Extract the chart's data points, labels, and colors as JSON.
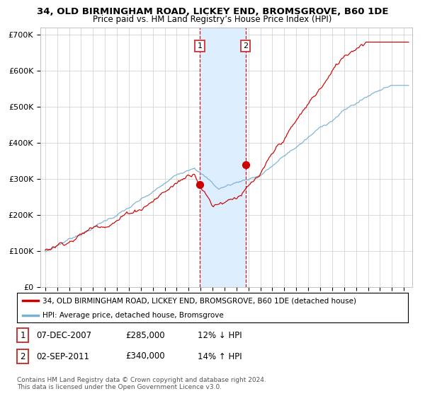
{
  "title": "34, OLD BIRMINGHAM ROAD, LICKEY END, BROMSGROVE, B60 1DE",
  "subtitle": "Price paid vs. HM Land Registry’s House Price Index (HPI)",
  "ylabel_ticks": [
    "£0",
    "£100K",
    "£200K",
    "£300K",
    "£400K",
    "£500K",
    "£600K",
    "£700K"
  ],
  "ytick_values": [
    0,
    100000,
    200000,
    300000,
    400000,
    500000,
    600000,
    700000
  ],
  "ylim": [
    0,
    720000
  ],
  "xlim_start": 1994.6,
  "xlim_end": 2025.7,
  "hpi_color": "#7ab2d4",
  "price_color": "#cc0000",
  "bg_color": "#ffffff",
  "grid_color": "#cccccc",
  "point1_x": 2007.92,
  "point1_y": 285000,
  "point2_x": 2011.75,
  "point2_y": 340000,
  "shade_color": "#ddeeff",
  "legend_line1": "34, OLD BIRMINGHAM ROAD, LICKEY END, BROMSGROVE, B60 1DE (detached house)",
  "legend_line2": "HPI: Average price, detached house, Bromsgrove",
  "table_row1_num": "1",
  "table_row1_date": "07-DEC-2007",
  "table_row1_price": "£285,000",
  "table_row1_hpi": "12% ↓ HPI",
  "table_row2_num": "2",
  "table_row2_date": "02-SEP-2011",
  "table_row2_price": "£340,000",
  "table_row2_hpi": "14% ↑ HPI",
  "footer_line1": "Contains HM Land Registry data © Crown copyright and database right 2024.",
  "footer_line2": "This data is licensed under the Open Government Licence v3.0."
}
